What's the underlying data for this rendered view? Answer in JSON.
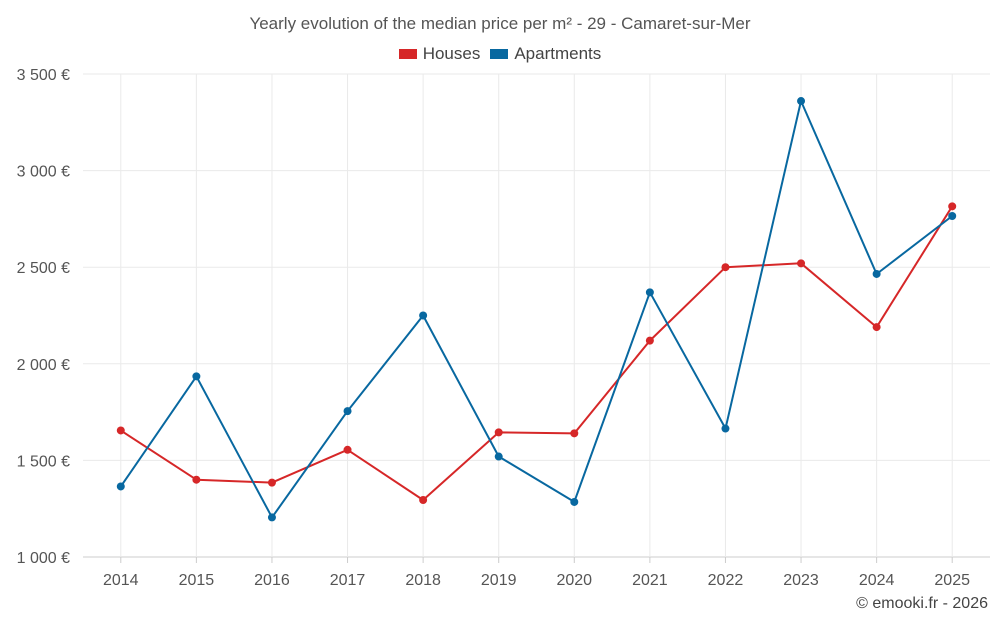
{
  "chart_data": {
    "type": "line",
    "title": "Yearly evolution of the median price per m² - 29 - Camaret-sur-Mer",
    "categories": [
      "2014",
      "2015",
      "2016",
      "2017",
      "2018",
      "2019",
      "2020",
      "2021",
      "2022",
      "2023",
      "2024",
      "2025"
    ],
    "series": [
      {
        "name": "Houses",
        "color": "#d62728",
        "values": [
          1655,
          1400,
          1385,
          1555,
          1295,
          1645,
          1640,
          2120,
          2500,
          2520,
          2190,
          2815
        ]
      },
      {
        "name": "Apartments",
        "color": "#0868a0",
        "values": [
          1365,
          1935,
          1205,
          1755,
          2250,
          1520,
          1285,
          2370,
          1665,
          3360,
          2465,
          2765
        ]
      }
    ],
    "ylim": [
      1000,
      3500
    ],
    "yticks": [
      1000,
      1500,
      2000,
      2500,
      3000,
      3500
    ],
    "ytick_labels": [
      "1 000 €",
      "1 500 €",
      "2 000 €",
      "2 500 €",
      "3 000 €",
      "3 500 €"
    ],
    "xlabel": "",
    "ylabel": "",
    "grid": true,
    "legend_position": "top-center"
  },
  "credit": "© emooki.fr - 2026"
}
